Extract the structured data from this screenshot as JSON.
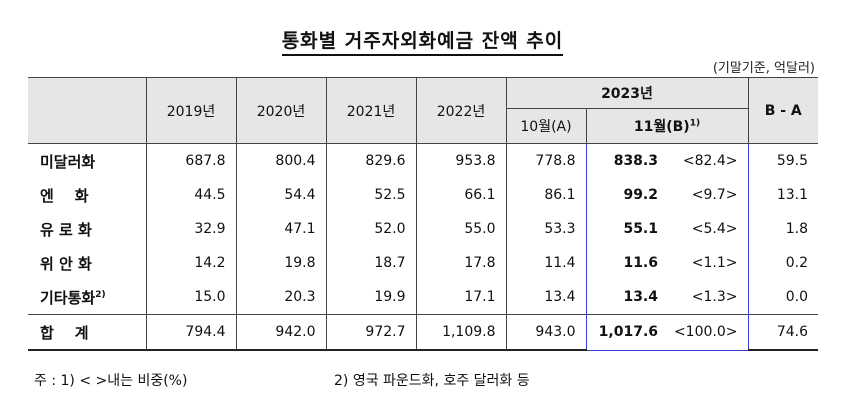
{
  "title": "통화별 거주자외화예금 잔액 추이",
  "unit": "(기말기준, 억달러)",
  "header": {
    "years": [
      "2019년",
      "2020년",
      "2021년",
      "2022년"
    ],
    "year_2023": "2023년",
    "oct": "10월(A)",
    "nov": "11월(B)",
    "nov_sup": "1)",
    "diff": "B - A"
  },
  "rows": [
    {
      "label": "미달러화",
      "v": [
        "687.8",
        "800.4",
        "829.6",
        "953.8",
        "778.8",
        "838.3",
        "<82.4>",
        "59.5"
      ]
    },
    {
      "label": "엔    화",
      "v": [
        "44.5",
        "54.4",
        "52.5",
        "66.1",
        "86.1",
        "99.2",
        "<9.7>",
        "13.1"
      ]
    },
    {
      "label": "유 로 화",
      "v": [
        "32.9",
        "47.1",
        "52.0",
        "55.0",
        "53.3",
        "55.1",
        "<5.4>",
        "1.8"
      ]
    },
    {
      "label": "위 안 화",
      "v": [
        "14.2",
        "19.8",
        "18.7",
        "17.8",
        "11.4",
        "11.6",
        "<1.1>",
        "0.2"
      ]
    },
    {
      "label": "기타통화",
      "sup": "2)",
      "v": [
        "15.0",
        "20.3",
        "19.9",
        "17.1",
        "13.4",
        "13.4",
        "<1.3>",
        "0.0"
      ]
    }
  ],
  "total": {
    "label": "합    계",
    "v": [
      "794.4",
      "942.0",
      "972.7",
      "1,109.8",
      "943.0",
      "1,017.6",
      "<100.0>",
      "74.6"
    ]
  },
  "footnote1": "주 : 1) <   >내는 비중(%)",
  "footnote2": "2) 영국 파운드화, 호주 달러화 등"
}
